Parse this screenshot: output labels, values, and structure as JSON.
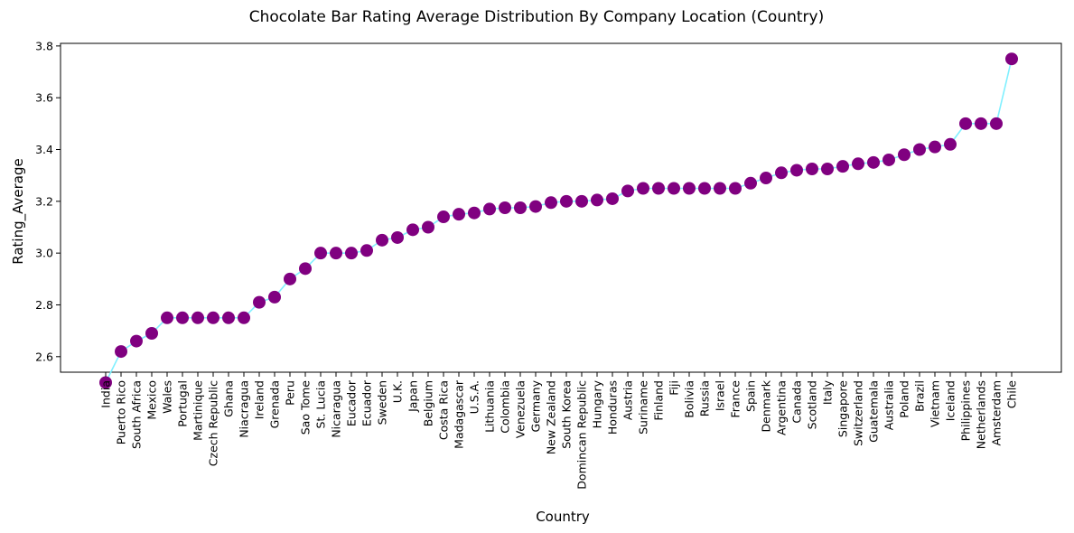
{
  "chart_data": {
    "type": "line",
    "title": "Chocolate Bar Rating Average Distribution By Company Location (Country)",
    "xlabel": "Country",
    "ylabel": "Rating_Average",
    "ylim": [
      2.54,
      3.81
    ],
    "yticks": [
      "2.6",
      "2.8",
      "3.0",
      "3.2",
      "3.4",
      "3.6",
      "3.8"
    ],
    "grid": false,
    "line_color": "#80f0ff",
    "marker_color": "#800080",
    "categories": [
      "India",
      "Puerto Rico",
      "South Africa",
      "Mexico",
      "Wales",
      "Portugal",
      "Martinique",
      "Czech Republic",
      "Ghana",
      "Niacragua",
      "Ireland",
      "Grenada",
      "Peru",
      "Sao Tome",
      "St. Lucia",
      "Nicaragua",
      "Eucador",
      "Ecuador",
      "Sweden",
      "U.K.",
      "Japan",
      "Belgium",
      "Costa Rica",
      "Madagascar",
      "U.S.A.",
      "Lithuania",
      "Colombia",
      "Venezuela",
      "Germany",
      "New Zealand",
      "South Korea",
      "Domincan Republic",
      "Hungary",
      "Honduras",
      "Austria",
      "Suriname",
      "Finland",
      "Fiji",
      "Bolivia",
      "Russia",
      "Israel",
      "France",
      "Spain",
      "Denmark",
      "Argentina",
      "Canada",
      "Scotland",
      "Italy",
      "Singapore",
      "Switzerland",
      "Guatemala",
      "Australia",
      "Poland",
      "Brazil",
      "Vietnam",
      "Iceland",
      "Philippines",
      "Netherlands",
      "Amsterdam",
      "Chile"
    ],
    "values": [
      2.5,
      2.62,
      2.66,
      2.69,
      2.75,
      2.75,
      2.75,
      2.75,
      2.75,
      2.75,
      2.81,
      2.83,
      2.9,
      2.94,
      3.0,
      3.0,
      3.0,
      3.01,
      3.05,
      3.06,
      3.09,
      3.1,
      3.14,
      3.15,
      3.155,
      3.17,
      3.175,
      3.175,
      3.18,
      3.195,
      3.2,
      3.2,
      3.205,
      3.21,
      3.24,
      3.25,
      3.25,
      3.25,
      3.25,
      3.25,
      3.25,
      3.25,
      3.27,
      3.29,
      3.31,
      3.32,
      3.325,
      3.325,
      3.335,
      3.345,
      3.35,
      3.36,
      3.38,
      3.4,
      3.41,
      3.42,
      3.5,
      3.5,
      3.5,
      3.75
    ]
  }
}
